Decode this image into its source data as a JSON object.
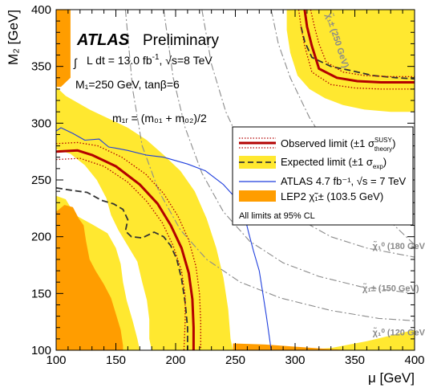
{
  "chart_data": {
    "type": "contour",
    "xlabel": "μ [GeV]",
    "ylabel": "M₂ [GeV]",
    "xlim": [
      100,
      400
    ],
    "ylim": [
      100,
      400
    ],
    "x_ticks": [
      100,
      150,
      200,
      250,
      300,
      350,
      400
    ],
    "y_ticks": [
      100,
      150,
      200,
      250,
      300,
      350,
      400
    ],
    "x_tick_labels": [
      "100",
      "150",
      "200",
      "250",
      "300",
      "350",
      "400"
    ],
    "y_tick_labels": [
      "100",
      "150",
      "200",
      "250",
      "300",
      "350",
      "400"
    ],
    "grid": false,
    "legend_position": "right",
    "header": {
      "experiment": "ATLAS",
      "status": "Preliminary",
      "luminosity_prefix": "L dt = 13.0 fb",
      "luminosity_exp": "-1",
      "energy": ", √s=8 TeV",
      "params": "M₁=250 GeV, tanβ=6",
      "mass_formula": "m₁ᵣ = (m₀₁ + m₀₂)/2"
    },
    "legend": {
      "observed_label": "Observed limit (±1 σ",
      "observed_sup": "SUSY",
      "observed_sub": "theory",
      "expected_label": "Expected limit (±1 σ",
      "expected_sub": "exp",
      "atlas7_label": "ATLAS 4.7 fb⁻¹, √s = 7 TeV",
      "lep2_label": "LEP2 χ̃₁± (103.5 GeV)",
      "note": "All limits at 95% CL"
    },
    "contour_labels": [
      {
        "text": "χ̃₁± (250 GeV)",
        "mu": 333,
        "m2": 372,
        "rotate": 72
      },
      {
        "text": "χ̃₁⁰ (180 GeV)",
        "mu": 388,
        "m2": 189,
        "rotate": 0
      },
      {
        "text": "χ̃₁± (150 GeV)",
        "mu": 380,
        "m2": 152,
        "rotate": 0
      },
      {
        "text": "χ̃₁⁰ (120 GeV)",
        "mu": 388,
        "m2": 113,
        "rotate": 0
      }
    ],
    "colors": {
      "yellow_band": "#ffe830",
      "lep2": "#ff9d00",
      "observed": "#b30000",
      "expected": "#333333",
      "atlas7": "#1f3fdd",
      "iso_lines": "#8c8c8c"
    },
    "series": [
      {
        "role": "observed",
        "points": [
          [
            100,
            275
          ],
          [
            118,
            276
          ],
          [
            130,
            272
          ],
          [
            150,
            262
          ],
          [
            170,
            246
          ],
          [
            185,
            229
          ],
          [
            196,
            210
          ],
          [
            205,
            190
          ],
          [
            211,
            168
          ],
          [
            214,
            145
          ],
          [
            215,
            120
          ],
          [
            215,
            100
          ]
        ]
      },
      {
        "role": "observed_minus_1sigma",
        "points": [
          [
            100,
            268
          ],
          [
            120,
            269
          ],
          [
            140,
            262
          ],
          [
            160,
            248
          ],
          [
            176,
            231
          ],
          [
            189,
            212
          ],
          [
            198,
            192
          ],
          [
            205,
            170
          ],
          [
            208,
            148
          ],
          [
            208,
            125
          ],
          [
            207,
            100
          ]
        ]
      },
      {
        "role": "observed_plus_1sigma",
        "points": [
          [
            100,
            282
          ],
          [
            118,
            283
          ],
          [
            135,
            280
          ],
          [
            155,
            270
          ],
          [
            175,
            255
          ],
          [
            190,
            238
          ],
          [
            202,
            218
          ],
          [
            211,
            197
          ],
          [
            217,
            174
          ],
          [
            220,
            150
          ],
          [
            221,
            125
          ],
          [
            221,
            100
          ]
        ]
      },
      {
        "role": "expected",
        "points": [
          [
            100,
            243
          ],
          [
            112,
            241
          ],
          [
            126,
            239
          ],
          [
            138,
            232
          ],
          [
            148,
            229
          ],
          [
            156,
            224
          ],
          [
            160,
            215
          ],
          [
            158,
            205
          ],
          [
            163,
            200
          ],
          [
            172,
            199
          ],
          [
            182,
            204
          ],
          [
            190,
            200
          ],
          [
            196,
            192
          ],
          [
            201,
            180
          ],
          [
            205,
            163
          ],
          [
            208,
            142
          ],
          [
            210,
            120
          ],
          [
            210,
            100
          ]
        ]
      },
      {
        "role": "atlas7",
        "points": [
          [
            100,
            293
          ],
          [
            104,
            296
          ],
          [
            114,
            291
          ],
          [
            124,
            285
          ],
          [
            136,
            286
          ],
          [
            144,
            279
          ],
          [
            150,
            278
          ],
          [
            160,
            276
          ],
          [
            175,
            272
          ],
          [
            190,
            270
          ],
          [
            210,
            264
          ],
          [
            225,
            258
          ],
          [
            240,
            246
          ],
          [
            252,
            232
          ],
          [
            258,
            217
          ],
          [
            261,
            204
          ],
          [
            265,
            188
          ],
          [
            270,
            170
          ],
          [
            273,
            150
          ],
          [
            276,
            130
          ],
          [
            278,
            115
          ],
          [
            280,
            100
          ]
        ]
      },
      {
        "role": "expected_top_right",
        "points": [
          [
            305,
            385
          ],
          [
            308,
            372
          ],
          [
            314,
            358
          ],
          [
            330,
            350
          ],
          [
            348,
            346
          ],
          [
            365,
            342
          ],
          [
            385,
            340
          ],
          [
            400,
            339
          ]
        ]
      },
      {
        "role": "observed_top_right",
        "points": [
          [
            308,
            400
          ],
          [
            310,
            385
          ],
          [
            314,
            368
          ],
          [
            320,
            348
          ],
          [
            335,
            340
          ],
          [
            352,
            337
          ],
          [
            372,
            336
          ],
          [
            400,
            336
          ]
        ]
      },
      {
        "role": "observed_top_right_plus",
        "points": [
          [
            313,
            400
          ],
          [
            316,
            386
          ],
          [
            320,
            370
          ],
          [
            326,
            354
          ],
          [
            340,
            345
          ],
          [
            358,
            342
          ],
          [
            380,
            341
          ],
          [
            400,
            341
          ]
        ]
      },
      {
        "role": "observed_top_right_minus",
        "points": [
          [
            303,
            400
          ],
          [
            305,
            385
          ],
          [
            308,
            368
          ],
          [
            314,
            345
          ],
          [
            330,
            334
          ],
          [
            350,
            331
          ],
          [
            372,
            330
          ],
          [
            400,
            330
          ]
        ]
      }
    ],
    "regions": {
      "yellow_left": [
        [
          100,
          332
        ],
        [
          108,
          324
        ],
        [
          118,
          318
        ],
        [
          128,
          312
        ],
        [
          142,
          305
        ],
        [
          160,
          296
        ],
        [
          176,
          285
        ],
        [
          190,
          272
        ],
        [
          204,
          258
        ],
        [
          216,
          240
        ],
        [
          226,
          216
        ],
        [
          234,
          190
        ],
        [
          240,
          164
        ],
        [
          244,
          136
        ],
        [
          246,
          110
        ],
        [
          248,
          100
        ],
        [
          100,
          100
        ]
      ],
      "white_left_cutout": [
        [
          100,
          277
        ],
        [
          112,
          273
        ],
        [
          124,
          263
        ],
        [
          134,
          250
        ],
        [
          142,
          234
        ],
        [
          146,
          219
        ],
        [
          152,
          206
        ],
        [
          160,
          192
        ],
        [
          168,
          178
        ],
        [
          172,
          160
        ],
        [
          176,
          144
        ],
        [
          178,
          127
        ],
        [
          178,
          110
        ],
        [
          180,
          100
        ],
        [
          100,
          100
        ]
      ],
      "white_island": [
        [
          130,
          204
        ],
        [
          140,
          201
        ],
        [
          145,
          190
        ],
        [
          142,
          177
        ],
        [
          132,
          175
        ],
        [
          126,
          186
        ],
        [
          125,
          198
        ]
      ],
      "yellow_inner": [
        [
          100,
          236
        ],
        [
          108,
          233
        ],
        [
          116,
          219
        ],
        [
          130,
          211
        ],
        [
          143,
          203
        ],
        [
          150,
          190
        ],
        [
          154,
          176
        ],
        [
          156,
          160
        ],
        [
          159,
          144
        ],
        [
          164,
          126
        ],
        [
          168,
          110
        ],
        [
          170,
          100
        ],
        [
          100,
          100
        ]
      ],
      "lep2_left_strip": [
        [
          100,
          400
        ],
        [
          112,
          400
        ],
        [
          112,
          340
        ],
        [
          104,
          332
        ],
        [
          100,
          332
        ]
      ],
      "lep2_left_block": [
        [
          100,
          222
        ],
        [
          107,
          228
        ],
        [
          114,
          226
        ],
        [
          119,
          216
        ],
        [
          123,
          210
        ],
        [
          125,
          196
        ],
        [
          128,
          180
        ],
        [
          133,
          170
        ],
        [
          140,
          158
        ],
        [
          146,
          146
        ],
        [
          150,
          132
        ],
        [
          154,
          118
        ],
        [
          156,
          104
        ],
        [
          156,
          100
        ],
        [
          100,
          100
        ]
      ],
      "lep2_bottom_right": [
        [
          248,
          106
        ],
        [
          275,
          105
        ],
        [
          302,
          103
        ],
        [
          330,
          101
        ],
        [
          350,
          100
        ],
        [
          248,
          100
        ]
      ],
      "yellow_top_right": [
        [
          293,
          400
        ],
        [
          400,
          400
        ],
        [
          400,
          310
        ],
        [
          380,
          310
        ],
        [
          358,
          312
        ],
        [
          340,
          316
        ],
        [
          325,
          322
        ],
        [
          312,
          330
        ],
        [
          302,
          342
        ],
        [
          296,
          362
        ],
        [
          293,
          382
        ]
      ],
      "yellow_right_tail": [
        [
          400,
          118
        ],
        [
          360,
          108
        ],
        [
          330,
          102
        ],
        [
          300,
          100
        ],
        [
          400,
          100
        ]
      ]
    },
    "reference_lines": [
      {
        "role": "chargino_250",
        "points": [
          [
            280,
            400
          ],
          [
            286,
            370
          ],
          [
            296,
            340
          ],
          [
            312,
            305
          ],
          [
            330,
            275
          ],
          [
            352,
            245
          ],
          [
            378,
            215
          ],
          [
            400,
            193
          ]
        ]
      },
      {
        "role": "neutralino_180",
        "points": [
          [
            222,
            400
          ],
          [
            230,
            352
          ],
          [
            242,
            310
          ],
          [
            258,
            274
          ],
          [
            280,
            238
          ],
          [
            306,
            214
          ],
          [
            330,
            200
          ],
          [
            360,
            190
          ],
          [
            400,
            182
          ]
        ]
      },
      {
        "role": "chargino_150",
        "points": [
          [
            190,
            400
          ],
          [
            198,
            340
          ],
          [
            208,
            296
          ],
          [
            222,
            256
          ],
          [
            240,
            222
          ],
          [
            262,
            196
          ],
          [
            290,
            177
          ],
          [
            320,
            165
          ],
          [
            355,
            156
          ],
          [
            400,
            150
          ]
        ]
      },
      {
        "role": "neutralino_120",
        "points": [
          [
            158,
            400
          ],
          [
            164,
            330
          ],
          [
            172,
            280
          ],
          [
            186,
            240
          ],
          [
            204,
            206
          ],
          [
            226,
            180
          ],
          [
            254,
            160
          ],
          [
            288,
            146
          ],
          [
            330,
            135
          ],
          [
            370,
            128
          ],
          [
            400,
            126
          ]
        ]
      }
    ]
  }
}
